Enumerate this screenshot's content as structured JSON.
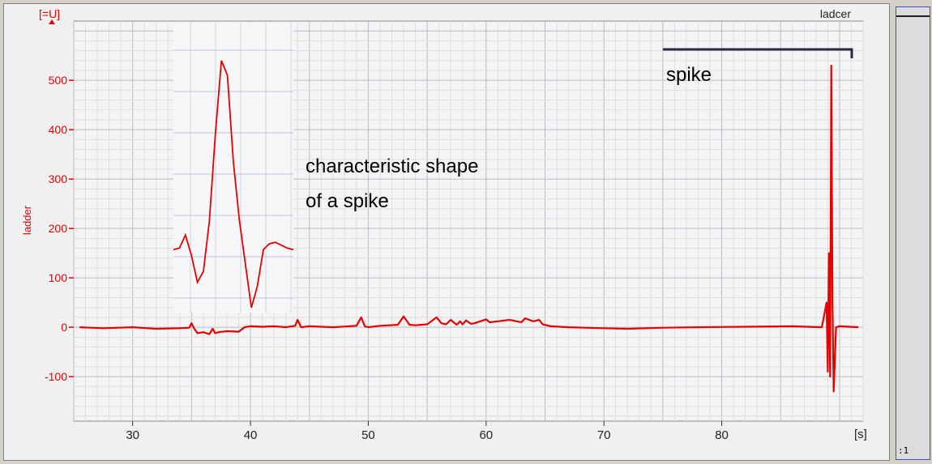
{
  "chart_data": {
    "type": "line",
    "title": "",
    "legend_label": "ladcer",
    "ylabel": "ladder",
    "yunit": "[=U]",
    "xunit": "[s]",
    "xlim": [
      25,
      92
    ],
    "ylim": [
      -190,
      620
    ],
    "yticks": [
      -100,
      0,
      100,
      200,
      300,
      400,
      500
    ],
    "ytick_labels": [
      "-100",
      "0",
      "100",
      "200",
      "300",
      "400",
      "500"
    ],
    "xticks": [
      30,
      40,
      50,
      60,
      70,
      80
    ],
    "xtick_labels": [
      "30",
      "40",
      "50",
      "60",
      "70",
      "80"
    ],
    "grid": true,
    "line_color": "#e60000",
    "series": [
      {
        "name": "",
        "x": [
          25.5,
          27.5,
          30.0,
          32.0,
          34.0,
          34.8,
          35.0,
          35.2,
          35.5,
          36.0,
          36.5,
          36.8,
          37.0,
          37.3,
          38.0,
          39.0,
          39.5,
          40.0,
          41.0,
          42.0,
          43.0,
          43.8,
          44.0,
          44.3,
          45.0,
          47.0,
          49.0,
          49.4,
          49.7,
          50.0,
          51.0,
          52.5,
          53.0,
          53.5,
          54.0,
          55.0,
          55.8,
          56.2,
          56.6,
          57.0,
          57.5,
          57.8,
          58.0,
          58.3,
          58.7,
          59.0,
          60.0,
          60.3,
          61.0,
          62.0,
          63.0,
          63.3,
          64.0,
          64.5,
          64.8,
          65.5,
          67.0,
          70.0,
          72.0,
          75.0,
          78.0,
          82.0,
          86.0,
          88.5,
          88.9,
          89.0,
          89.1,
          89.2,
          89.3,
          89.4,
          89.5,
          89.7,
          90.0,
          91.6
        ],
        "y": [
          0,
          -2,
          0,
          -3,
          -2,
          -1,
          8,
          -2,
          -12,
          -10,
          -14,
          -3,
          -12,
          -10,
          -8,
          -9,
          0,
          2,
          1,
          2,
          0,
          3,
          15,
          0,
          2,
          0,
          3,
          20,
          2,
          0,
          3,
          5,
          22,
          5,
          4,
          6,
          20,
          8,
          6,
          15,
          5,
          12,
          6,
          14,
          7,
          8,
          16,
          10,
          12,
          15,
          10,
          18,
          12,
          15,
          6,
          2,
          0,
          -2,
          -3,
          -1,
          0,
          1,
          2,
          0,
          50,
          -90,
          150,
          -100,
          530,
          50,
          -130,
          0,
          2,
          0
        ]
      }
    ],
    "inset": {
      "description_label": "",
      "x": [
        0,
        1,
        2,
        3,
        4,
        5,
        6,
        7,
        8,
        9,
        10,
        11,
        12,
        13,
        14,
        15,
        16,
        17,
        18,
        19,
        20
      ],
      "y": [
        0,
        2,
        20,
        -8,
        -45,
        -30,
        40,
        160,
        260,
        240,
        120,
        40,
        -20,
        -80,
        -50,
        0,
        8,
        10,
        6,
        2,
        0
      ]
    },
    "annotations": [
      {
        "text_line1": "characteristic shape",
        "text_line2": "of a spike"
      },
      {
        "text": "spike"
      }
    ]
  }
}
